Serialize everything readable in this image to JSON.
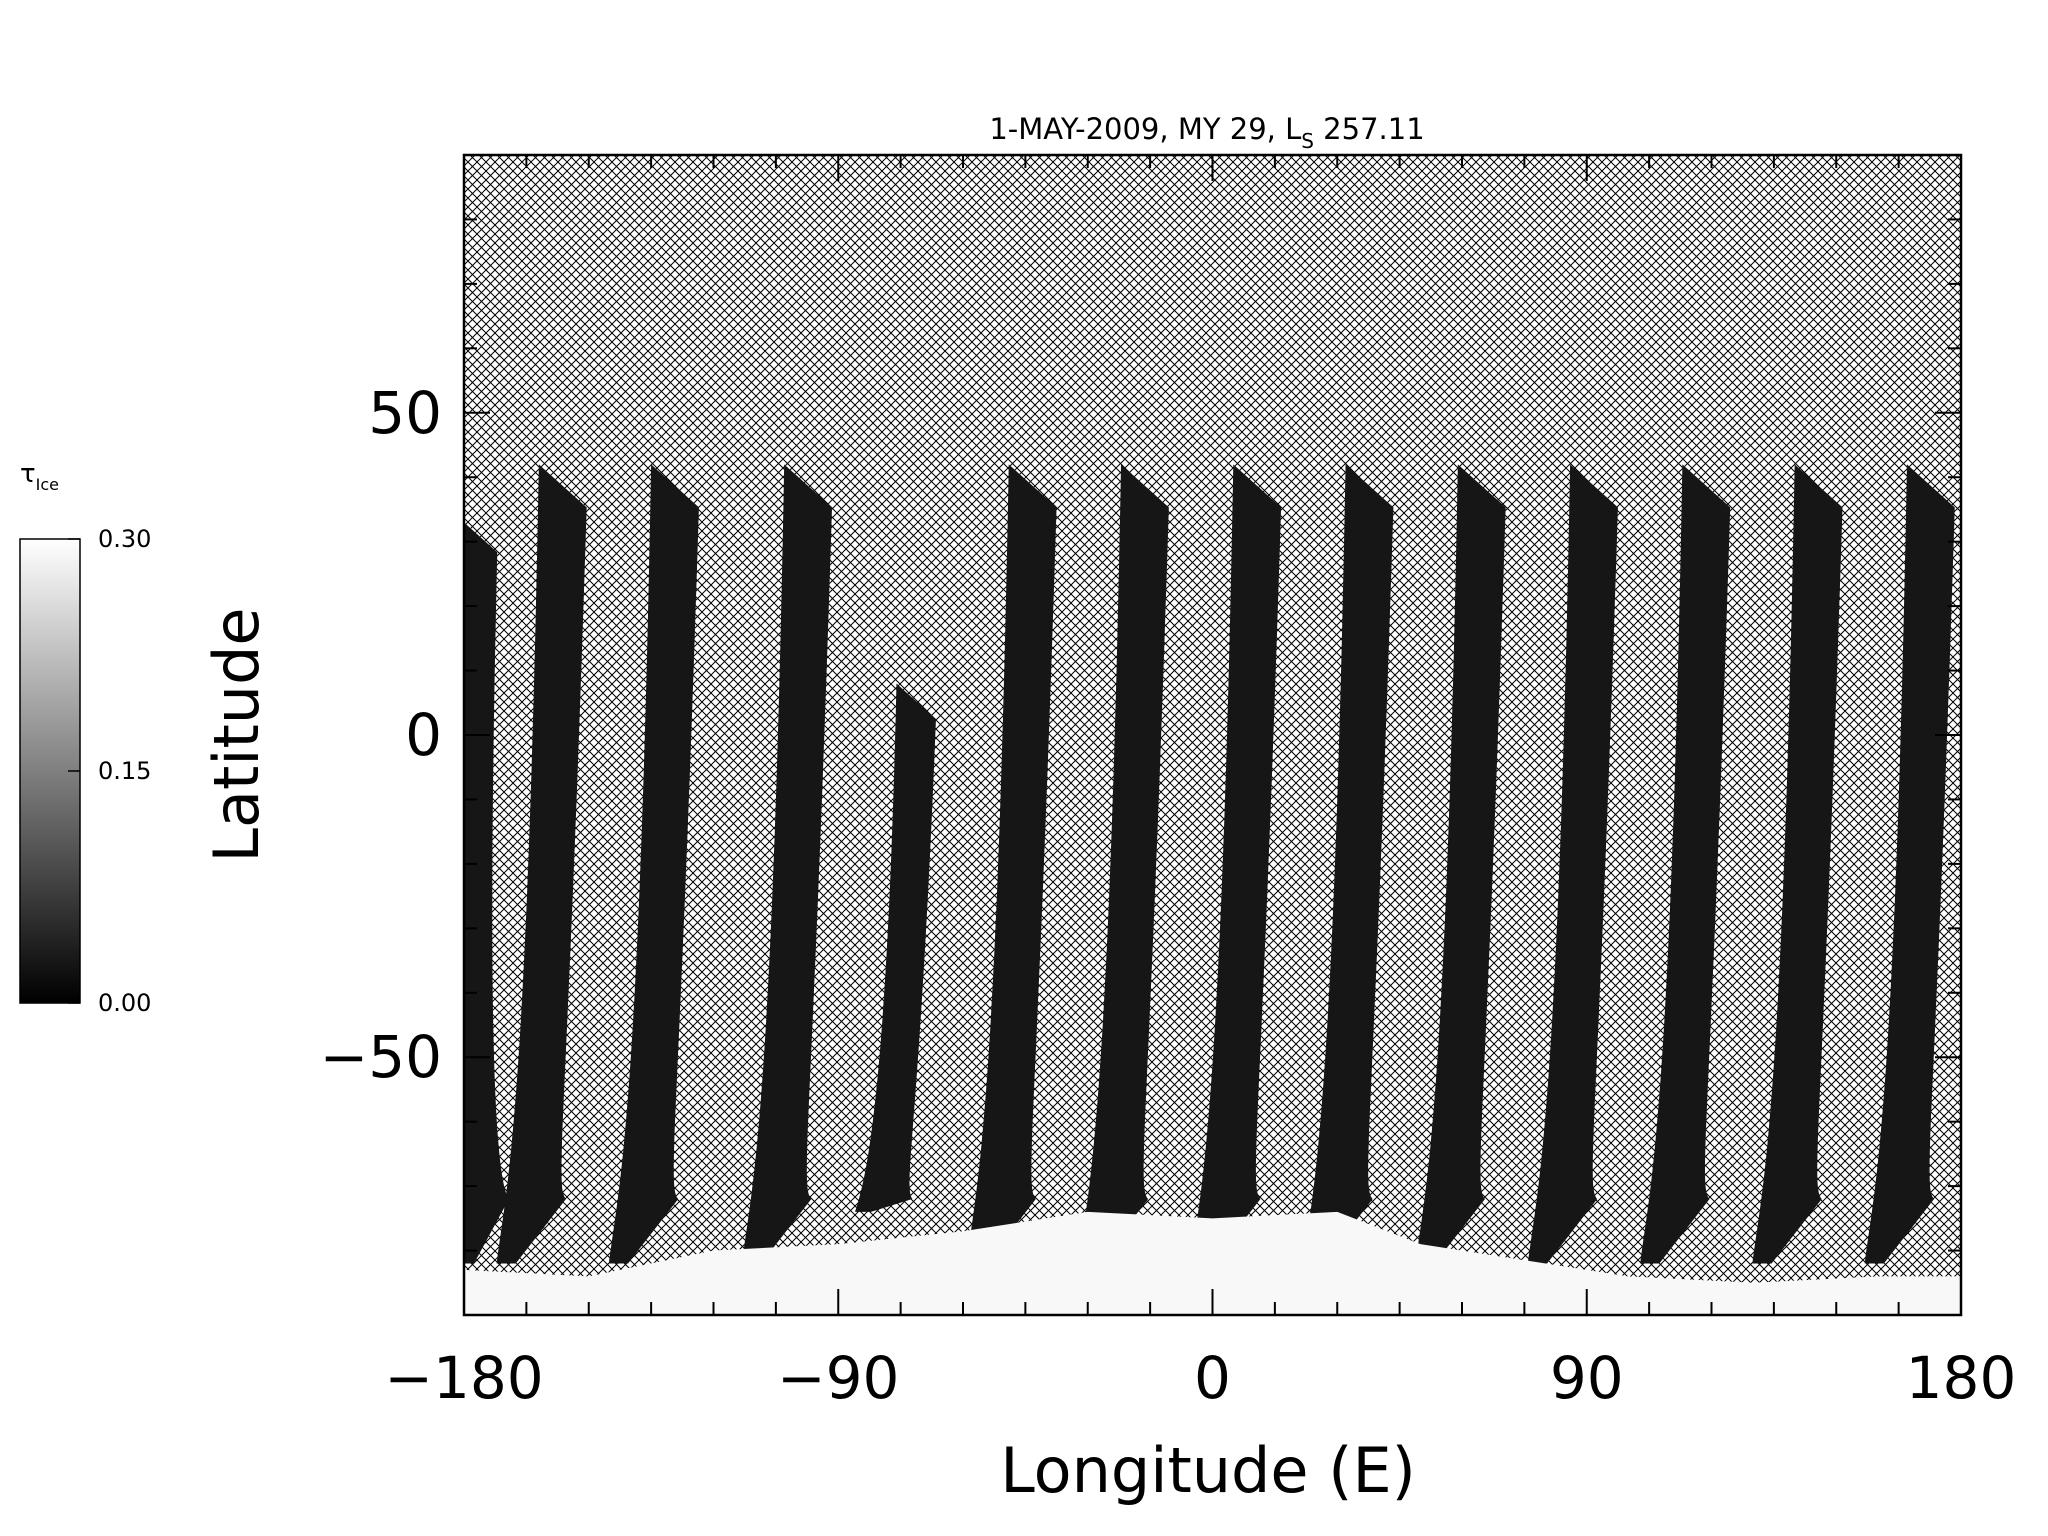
{
  "chart_data": {
    "type": "heatmap",
    "title": {
      "main": "1-MAY-2009, MY 29,  L",
      "subscript": "S",
      "tail": " 257.11"
    },
    "xlabel": "Longitude (E)",
    "ylabel": "Latitude",
    "xlim": [
      -180,
      180
    ],
    "ylim": [
      -90,
      90
    ],
    "xticks": [
      -180,
      -90,
      0,
      90,
      180
    ],
    "xtick_labels": [
      "−180",
      "−90",
      "0",
      "90",
      "180"
    ],
    "yticks": [
      -50,
      0,
      50
    ],
    "ytick_labels": [
      "−50",
      "0",
      "50"
    ],
    "x_minor_step": 15,
    "y_minor_step": 10,
    "colorbar": {
      "label_main": "τ",
      "label_sub": "Ice",
      "min": 0.0,
      "max": 0.3,
      "ticks": [
        0.0,
        0.15,
        0.3
      ],
      "tick_labels": [
        "0.00",
        "0.15",
        "0.30"
      ],
      "colormap": "grayscale",
      "low_color": "#000000",
      "high_color": "#ffffff"
    },
    "missing_data_style": "crosshatch",
    "data_color": "#161616",
    "polar_cap_color": "#f8f8f8",
    "swaths": [
      {
        "lon_top": -162,
        "lon_bottom": -171,
        "lat_top": 42,
        "lat_bottom": -82,
        "width": 11.5
      },
      {
        "lon_top": -135,
        "lon_bottom": -144,
        "lat_top": 42,
        "lat_bottom": -82,
        "width": 11.5
      },
      {
        "lon_top": -103,
        "lon_bottom": -112,
        "lat_top": 42,
        "lat_bottom": -82,
        "width": 11.5
      },
      {
        "lon_top": -76,
        "lon_bottom": -85,
        "lat_top": 8,
        "lat_bottom": -74,
        "width": 9.5
      },
      {
        "lon_top": -49,
        "lon_bottom": -58,
        "lat_top": 42,
        "lat_bottom": -82,
        "width": 11.5
      },
      {
        "lon_top": -22,
        "lon_bottom": -31,
        "lat_top": 42,
        "lat_bottom": -82,
        "width": 11.5
      },
      {
        "lon_top": 5,
        "lon_bottom": -4,
        "lat_top": 42,
        "lat_bottom": -82,
        "width": 11.5
      },
      {
        "lon_top": 32,
        "lon_bottom": 23,
        "lat_top": 42,
        "lat_bottom": -82,
        "width": 11.5
      },
      {
        "lon_top": 59,
        "lon_bottom": 50,
        "lat_top": 42,
        "lat_bottom": -82,
        "width": 11.5
      },
      {
        "lon_top": 86,
        "lon_bottom": 77,
        "lat_top": 42,
        "lat_bottom": -82,
        "width": 11.5
      },
      {
        "lon_top": 113,
        "lon_bottom": 104,
        "lat_top": 42,
        "lat_bottom": -82,
        "width": 11.5
      },
      {
        "lon_top": 140,
        "lon_bottom": 131,
        "lat_top": 42,
        "lat_bottom": -82,
        "width": 11.5
      },
      {
        "lon_top": 167,
        "lon_bottom": 158,
        "lat_top": 42,
        "lat_bottom": -82,
        "width": 11.5
      },
      {
        "lon_top": -180,
        "lon_bottom": -180,
        "lat_top": 33,
        "lat_bottom": -82,
        "width": 8
      }
    ],
    "polar_cap_edge": [
      [
        -180,
        -83
      ],
      [
        -150,
        -84
      ],
      [
        -120,
        -80
      ],
      [
        -90,
        -79
      ],
      [
        -60,
        -77
      ],
      [
        -30,
        -74
      ],
      [
        0,
        -75
      ],
      [
        30,
        -74
      ],
      [
        50,
        -79
      ],
      [
        70,
        -81
      ],
      [
        100,
        -84
      ],
      [
        130,
        -85
      ],
      [
        160,
        -84
      ],
      [
        180,
        -84
      ]
    ]
  }
}
